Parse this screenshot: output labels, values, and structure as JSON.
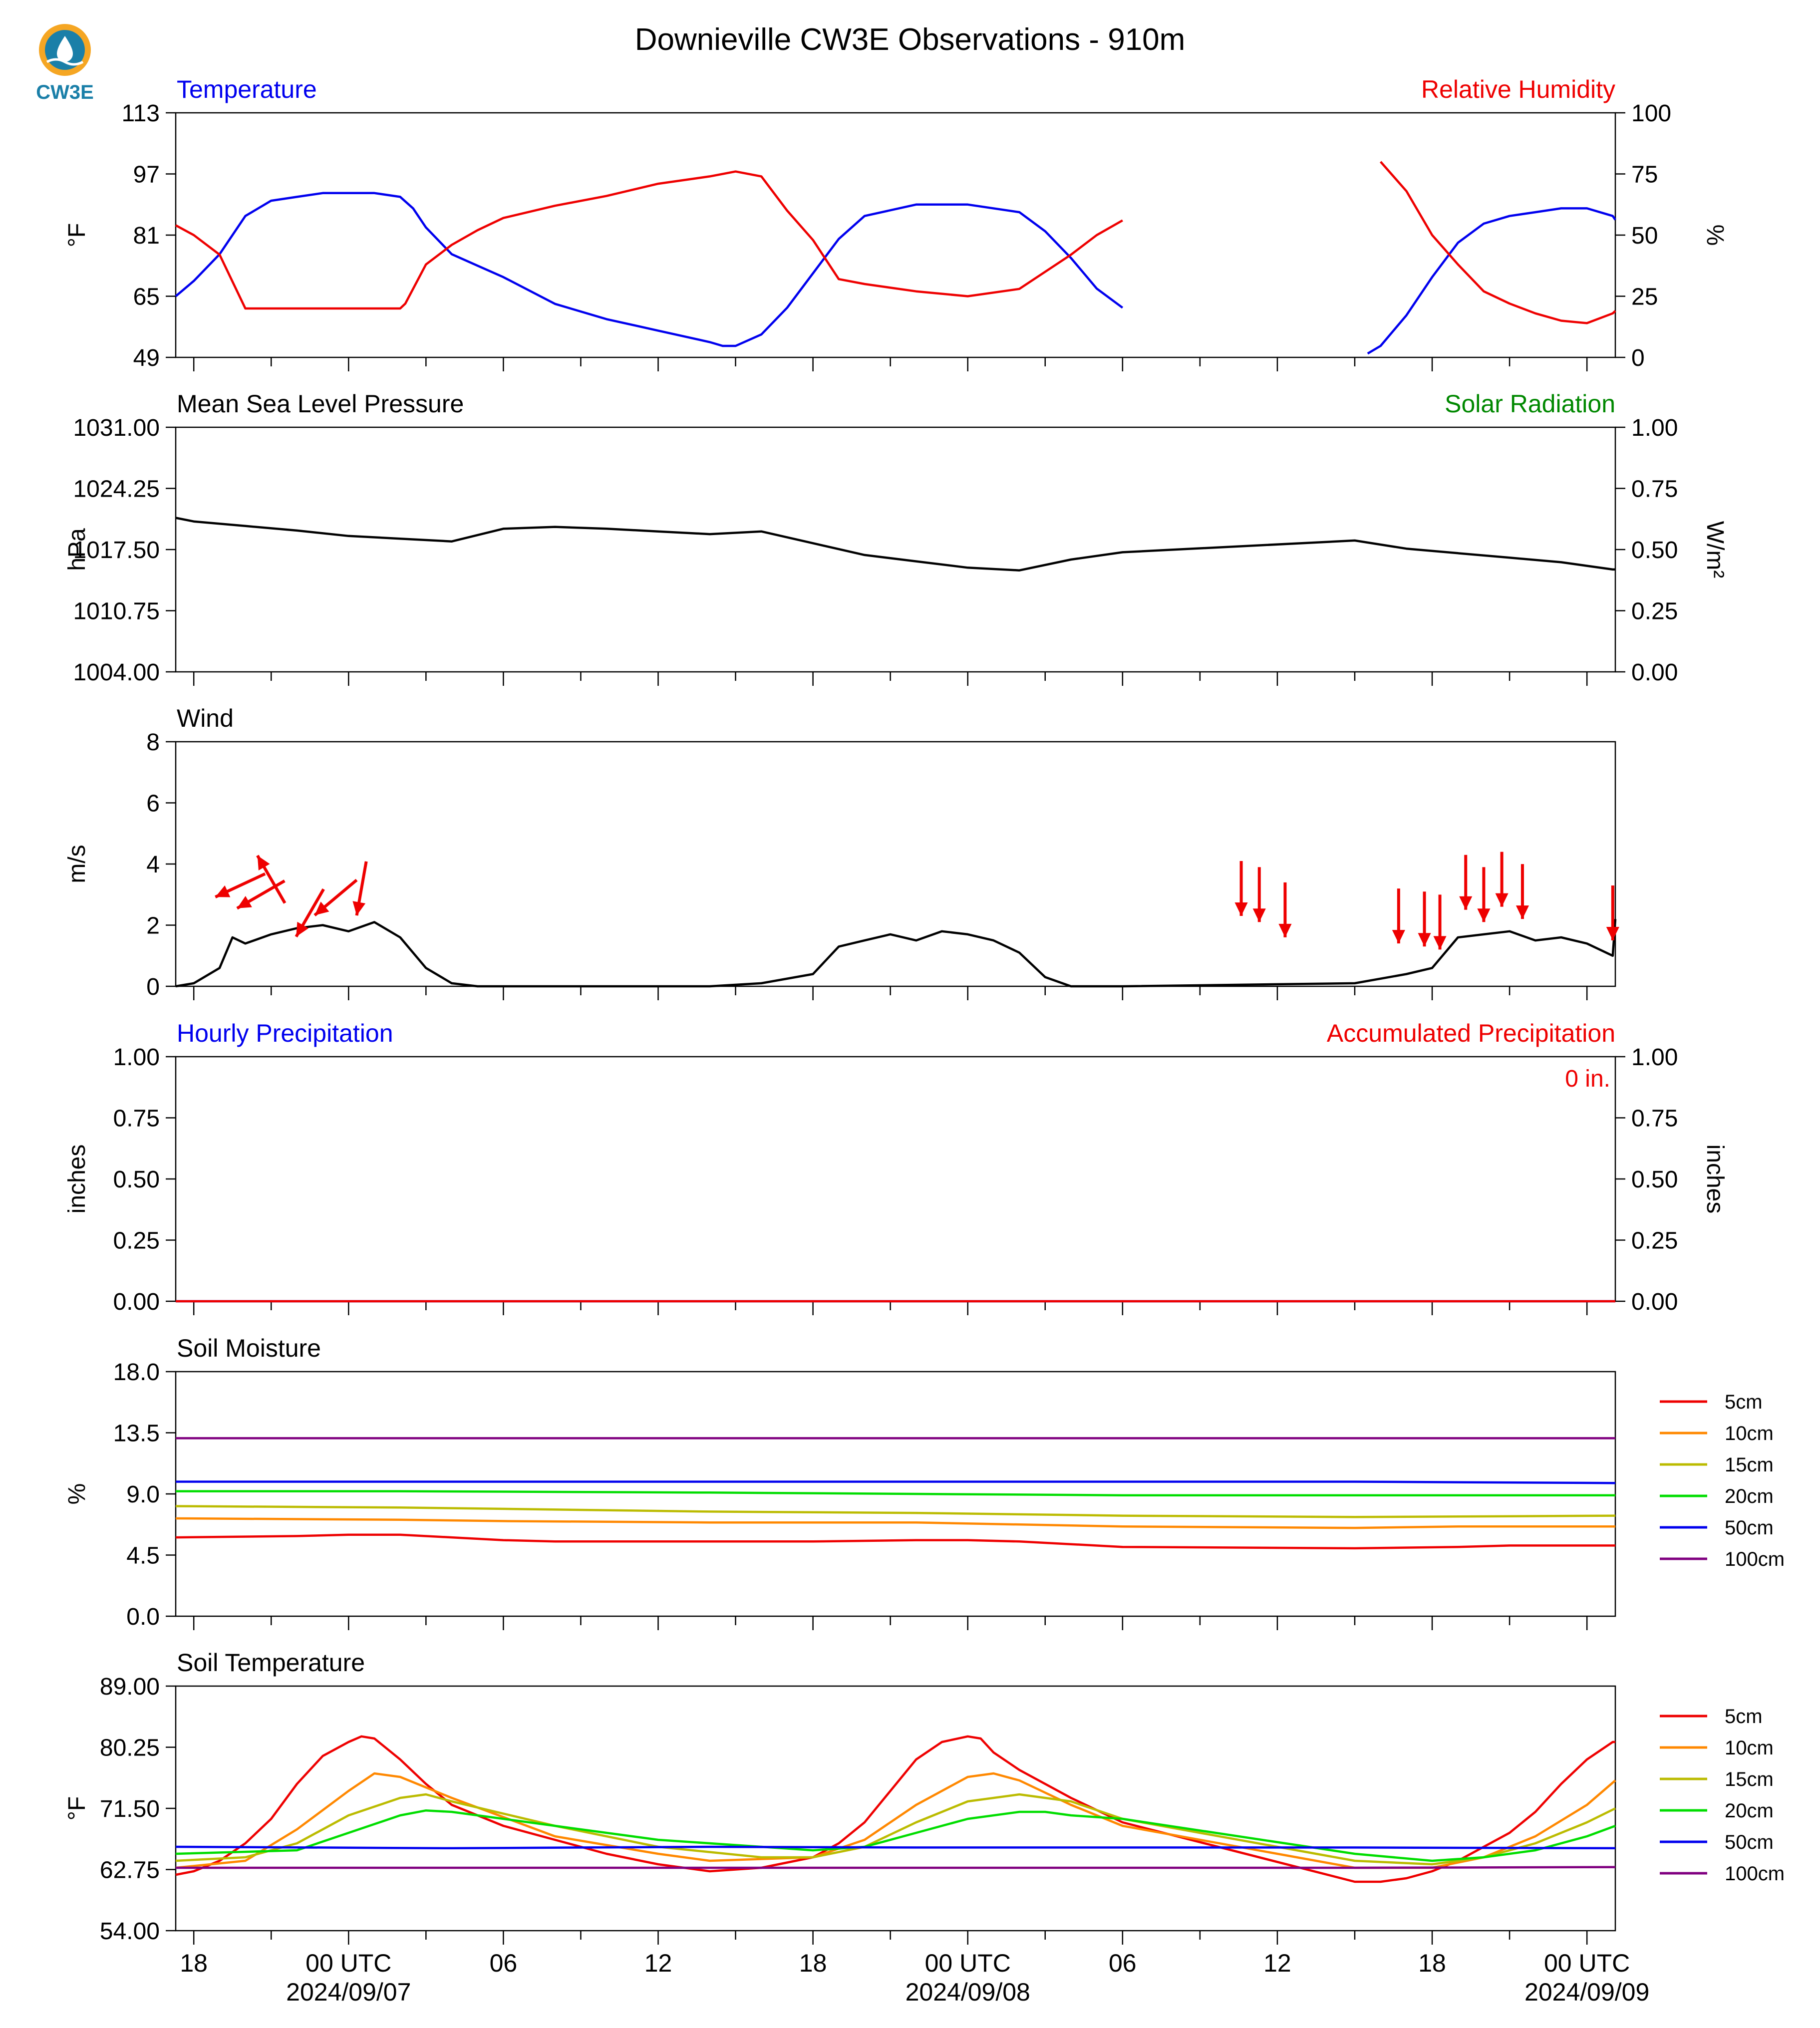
{
  "title": "Downieville CW3E Observations - 910m",
  "logo": {
    "text": "CW3E",
    "color": "#1a7fa8",
    "accent": "#f5a623"
  },
  "colors": {
    "blue": "#0000ee",
    "red": "#ee0000",
    "green": "#008800",
    "black": "#000000"
  },
  "x_axis": {
    "time_range_hours_from_18utc_0906": [
      -0.7,
      55.1
    ],
    "ticks": [
      {
        "hour": 0,
        "label": "18",
        "date": ""
      },
      {
        "hour": 6,
        "label": "00 UTC",
        "date": "2024/09/07"
      },
      {
        "hour": 12,
        "label": "06",
        "date": ""
      },
      {
        "hour": 18,
        "label": "12",
        "date": ""
      },
      {
        "hour": 24,
        "label": "18",
        "date": ""
      },
      {
        "hour": 30,
        "label": "00 UTC",
        "date": "2024/09/08"
      },
      {
        "hour": 36,
        "label": "06",
        "date": ""
      },
      {
        "hour": 42,
        "label": "12",
        "date": ""
      },
      {
        "hour": 48,
        "label": "18",
        "date": ""
      },
      {
        "hour": 54,
        "label": "00 UTC",
        "date": "2024/09/09"
      }
    ],
    "gap_hours": [
      36.0,
      45.0
    ]
  },
  "panels": [
    {
      "id": "temperature-rh",
      "left_title": "Temperature",
      "left_title_color": "#0000ee",
      "right_title": "Relative Humidity",
      "right_title_color": "#ee0000",
      "ylabel": "°F",
      "ylabel_right": "%",
      "yticks": [
        "49",
        "65",
        "81",
        "97",
        "113"
      ],
      "yticks_right": [
        "0",
        "25",
        "50",
        "75",
        "100"
      ]
    },
    {
      "id": "pressure-solar",
      "left_title": "Mean Sea Level Pressure",
      "left_title_color": "#000000",
      "right_title": "Solar Radiation",
      "right_title_color": "#008800",
      "ylabel": "hPa",
      "ylabel_right": "W/m²",
      "yticks": [
        "1004.00",
        "1010.75",
        "1017.50",
        "1024.25",
        "1031.00"
      ],
      "yticks_right": [
        "0.00",
        "0.25",
        "0.50",
        "0.75",
        "1.00"
      ]
    },
    {
      "id": "wind",
      "left_title": "Wind",
      "left_title_color": "#000000",
      "right_title": "",
      "right_title_color": "#000000",
      "ylabel": "m/s",
      "ylabel_right": "",
      "yticks": [
        "0",
        "2",
        "4",
        "6",
        "8"
      ],
      "yticks_right": []
    },
    {
      "id": "precipitation",
      "left_title": "Hourly Precipitation",
      "left_title_color": "#0000ee",
      "right_title": "Accumulated Precipitation",
      "right_title_color": "#ee0000",
      "ylabel": "inches",
      "ylabel_right": "inches",
      "yticks": [
        "0.00",
        "0.25",
        "0.50",
        "0.75",
        "1.00"
      ],
      "yticks_right": [
        "0.00",
        "0.25",
        "0.50",
        "0.75",
        "1.00"
      ],
      "annotation": "0 in."
    },
    {
      "id": "soil-moisture",
      "left_title": "Soil Moisture",
      "left_title_color": "#000000",
      "right_title": "",
      "right_title_color": "#000000",
      "ylabel": "%",
      "ylabel_right": "",
      "yticks": [
        "0.0",
        "4.5",
        "9.0",
        "13.5",
        "18.0"
      ],
      "yticks_right": []
    },
    {
      "id": "soil-temperature",
      "left_title": "Soil Temperature",
      "left_title_color": "#000000",
      "right_title": "",
      "right_title_color": "#000000",
      "ylabel": "°F",
      "ylabel_right": "",
      "yticks": [
        "54.00",
        "62.75",
        "71.50",
        "80.25",
        "89.00"
      ],
      "yticks_right": []
    }
  ],
  "legend_depths": [
    {
      "label": "5cm",
      "color": "#ee0000"
    },
    {
      "label": "10cm",
      "color": "#ff8800"
    },
    {
      "label": "15cm",
      "color": "#bbbb00"
    },
    {
      "label": "20cm",
      "color": "#00dd00"
    },
    {
      "label": "50cm",
      "color": "#0000ee"
    },
    {
      "label": "100cm",
      "color": "#800080"
    }
  ],
  "chart_data": [
    {
      "type": "line",
      "title": "Temperature",
      "ylabel": "°F",
      "ylim": [
        49,
        113
      ],
      "series": [
        {
          "name": "Temperature",
          "color": "#0000ee",
          "x": [
            -0.7,
            0,
            1,
            2,
            3,
            4,
            5,
            6,
            7,
            8,
            8.5,
            9,
            10,
            11,
            12,
            14,
            16,
            18,
            20,
            20.5,
            21,
            22,
            23,
            24,
            25,
            26,
            28,
            30,
            32,
            33,
            34,
            35,
            36,
            45,
            45.5,
            46,
            47,
            48,
            49,
            50,
            51,
            52,
            53,
            54,
            55,
            55.1
          ],
          "y": [
            65,
            69,
            76,
            86,
            90,
            91,
            92,
            92,
            92,
            91,
            88,
            83,
            76,
            73,
            70,
            63,
            59,
            56,
            53,
            52,
            52,
            55,
            62,
            71,
            80,
            86,
            89,
            89,
            87,
            82,
            75,
            67,
            62,
            null,
            50,
            52,
            60,
            70,
            79,
            84,
            86,
            87,
            88,
            88,
            86,
            85
          ]
        },
        {
          "name": "Relative Humidity",
          "color": "#ee0000",
          "axis": "right",
          "ylim_right": [
            0,
            100
          ],
          "x": [
            -0.7,
            0,
            1,
            2,
            3,
            4,
            5,
            6,
            7,
            8,
            8.2,
            9,
            10,
            11,
            12,
            14,
            16,
            18,
            20,
            21,
            22,
            23,
            24,
            25,
            26,
            28,
            30,
            32,
            33,
            34,
            35,
            36,
            45,
            46,
            47,
            48,
            49,
            50,
            51,
            52,
            53,
            54,
            55,
            55.1
          ],
          "y": [
            54,
            50,
            42,
            20,
            20,
            20,
            20,
            20,
            20,
            20,
            22,
            38,
            46,
            52,
            57,
            62,
            66,
            71,
            74,
            76,
            74,
            60,
            48,
            32,
            30,
            27,
            25,
            28,
            35,
            42,
            50,
            56,
            null,
            80,
            68,
            50,
            38,
            27,
            22,
            18,
            15,
            14,
            18,
            19
          ]
        }
      ]
    },
    {
      "type": "line",
      "title": "Mean Sea Level Pressure",
      "ylabel": "hPa",
      "ylim": [
        1004,
        1031
      ],
      "series": [
        {
          "name": "Mean Sea Level Pressure",
          "color": "#000000",
          "x": [
            -0.7,
            0,
            2,
            4,
            6,
            8,
            10,
            12,
            14,
            16,
            18,
            20,
            22,
            24,
            26,
            28,
            30,
            32,
            34,
            36,
            45,
            47,
            49,
            51,
            53,
            55,
            55.1
          ],
          "y": [
            1021.0,
            1020.6,
            1020.1,
            1019.6,
            1019.0,
            1018.7,
            1018.4,
            1019.8,
            1020.0,
            1019.8,
            1019.5,
            1019.2,
            1019.5,
            1018.2,
            1016.9,
            1016.2,
            1015.5,
            1015.2,
            1016.4,
            1017.2,
            1018.5,
            1017.6,
            1017.1,
            1016.6,
            1016.1,
            1015.3,
            1015.3
          ]
        }
      ]
    },
    {
      "type": "line",
      "title": "Wind",
      "ylabel": "m/s",
      "ylim": [
        0,
        8
      ],
      "series": [
        {
          "name": "Wind",
          "color": "#000000",
          "x": [
            -0.7,
            0,
            1,
            1.5,
            2,
            3,
            4,
            5,
            6,
            7,
            8,
            9,
            10,
            11,
            12,
            20,
            22,
            24,
            25,
            26,
            27,
            28,
            29,
            30,
            31,
            32,
            33,
            34,
            36,
            45,
            47,
            48,
            49,
            50,
            51,
            52,
            53,
            54,
            55,
            55.1
          ],
          "y": [
            0,
            0.1,
            0.6,
            1.6,
            1.4,
            1.7,
            1.9,
            2.0,
            1.8,
            2.1,
            1.6,
            0.6,
            0.1,
            0,
            0,
            0,
            0.1,
            0.4,
            1.3,
            1.5,
            1.7,
            1.5,
            1.8,
            1.7,
            1.5,
            1.1,
            0.3,
            0,
            0,
            0.1,
            0.4,
            0.6,
            1.6,
            1.7,
            1.8,
            1.5,
            1.6,
            1.4,
            1.0,
            2.2
          ]
        },
        {
          "name": "Wind direction",
          "color": "#ee0000",
          "kind": "arrows",
          "x": [
            1.8,
            2.6,
            3.0,
            4.5,
            5.5,
            6.5,
            40.6,
            41.3,
            42.3,
            46.7,
            47.7,
            48.3,
            49.3,
            50.0,
            50.7,
            51.5,
            55.0
          ],
          "speed": [
            3.3,
            3.0,
            3.5,
            2.4,
            2.9,
            3.2,
            3.2,
            3.0,
            2.5,
            2.3,
            2.2,
            2.1,
            3.4,
            3.0,
            3.5,
            3.1,
            2.4
          ],
          "dir_deg": [
            295,
            300,
            210,
            330,
            310,
            350,
            0,
            0,
            0,
            0,
            0,
            0,
            0,
            0,
            0,
            0,
            0
          ]
        }
      ]
    },
    {
      "type": "line",
      "title": "Hourly Precipitation",
      "ylabel": "inches",
      "ylim": [
        0,
        1
      ],
      "series": [
        {
          "name": "Hourly Precipitation",
          "color": "#0000ee",
          "x": [
            -0.7,
            55.1
          ],
          "y": [
            0,
            0
          ]
        },
        {
          "name": "Accumulated Precipitation",
          "color": "#ee0000",
          "x": [
            -0.7,
            55.1
          ],
          "y": [
            0,
            0
          ]
        }
      ]
    },
    {
      "type": "line",
      "title": "Soil Moisture",
      "ylabel": "%",
      "ylim": [
        0,
        18
      ],
      "series": [
        {
          "name": "5cm",
          "color": "#ee0000",
          "x": [
            -0.7,
            4,
            6,
            8,
            10,
            12,
            14,
            20,
            24,
            28,
            30,
            32,
            34,
            36,
            45,
            49,
            51,
            55.1
          ],
          "y": [
            5.8,
            5.9,
            6.0,
            6.0,
            5.8,
            5.6,
            5.5,
            5.5,
            5.5,
            5.6,
            5.6,
            5.5,
            5.3,
            5.1,
            5.0,
            5.1,
            5.2,
            5.2
          ]
        },
        {
          "name": "10cm",
          "color": "#ff8800",
          "x": [
            -0.7,
            8,
            12,
            20,
            28,
            36,
            45,
            49,
            55.1
          ],
          "y": [
            7.2,
            7.1,
            7.0,
            6.9,
            6.9,
            6.6,
            6.5,
            6.6,
            6.6
          ]
        },
        {
          "name": "15cm",
          "color": "#bbbb00",
          "x": [
            -0.7,
            8,
            12,
            20,
            28,
            36,
            45,
            55.1
          ],
          "y": [
            8.1,
            8.0,
            7.9,
            7.7,
            7.6,
            7.4,
            7.3,
            7.4
          ]
        },
        {
          "name": "20cm",
          "color": "#00dd00",
          "x": [
            -0.7,
            8,
            20,
            28,
            36,
            45,
            55.1
          ],
          "y": [
            9.2,
            9.2,
            9.1,
            9.0,
            8.9,
            8.9,
            8.9
          ]
        },
        {
          "name": "50cm",
          "color": "#0000ee",
          "x": [
            -0.7,
            36,
            45,
            55.1
          ],
          "y": [
            9.9,
            9.9,
            9.9,
            9.8
          ]
        },
        {
          "name": "100cm",
          "color": "#800080",
          "x": [
            -0.7,
            36,
            45,
            55.1
          ],
          "y": [
            13.1,
            13.1,
            13.1,
            13.1
          ]
        }
      ]
    },
    {
      "type": "line",
      "title": "Soil Temperature",
      "ylabel": "°F",
      "ylim": [
        54,
        89
      ],
      "series": [
        {
          "name": "5cm",
          "color": "#ee0000",
          "x": [
            -0.7,
            0,
            1,
            2,
            3,
            4,
            5,
            6,
            6.5,
            7,
            8,
            9,
            10,
            12,
            14,
            16,
            18,
            20,
            22,
            24,
            25,
            26,
            27,
            28,
            29,
            30,
            30.5,
            31,
            32,
            34,
            36,
            45,
            46,
            47,
            48,
            49,
            50,
            51,
            52,
            53,
            54,
            55,
            55.1
          ],
          "y": [
            62.0,
            62.5,
            64.0,
            66.5,
            70.0,
            75.0,
            79.0,
            81.0,
            81.8,
            81.5,
            78.5,
            75.0,
            72.0,
            69.0,
            67.0,
            65.0,
            63.5,
            62.5,
            63.0,
            64.5,
            66.5,
            69.5,
            74.0,
            78.5,
            81.0,
            81.8,
            81.5,
            79.5,
            77.0,
            73.0,
            69.5,
            61.0,
            61.0,
            61.5,
            62.5,
            64.0,
            66.0,
            68.0,
            71.0,
            75.0,
            78.5,
            81.0,
            81.0
          ]
        },
        {
          "name": "10cm",
          "color": "#ff8800",
          "x": [
            -0.7,
            2,
            4,
            6,
            7,
            8,
            10,
            14,
            18,
            20,
            24,
            26,
            28,
            30,
            31,
            32,
            34,
            36,
            45,
            48,
            50,
            52,
            54,
            55.1
          ],
          "y": [
            63.0,
            64.0,
            68.5,
            74.0,
            76.5,
            76.0,
            73.0,
            67.5,
            65.0,
            64.0,
            64.5,
            67.0,
            72.0,
            76.0,
            76.5,
            75.5,
            72.0,
            69.0,
            63.0,
            63.0,
            64.5,
            67.5,
            72.0,
            75.5
          ]
        },
        {
          "name": "15cm",
          "color": "#bbbb00",
          "x": [
            -0.7,
            2,
            4,
            6,
            8,
            9,
            10,
            14,
            18,
            22,
            24,
            26,
            28,
            30,
            32,
            34,
            36,
            45,
            48,
            50,
            52,
            54,
            55.1
          ],
          "y": [
            64.0,
            64.5,
            66.5,
            70.5,
            73.0,
            73.5,
            72.5,
            69.0,
            66.0,
            64.5,
            64.5,
            66.0,
            69.5,
            72.5,
            73.5,
            72.5,
            70.0,
            64.0,
            63.5,
            64.5,
            66.5,
            69.5,
            71.5
          ]
        },
        {
          "name": "20cm",
          "color": "#00dd00",
          "x": [
            -0.7,
            4,
            6,
            8,
            9,
            10,
            14,
            18,
            24,
            26,
            28,
            30,
            32,
            33,
            34,
            36,
            45,
            48,
            50,
            52,
            54,
            55.1
          ],
          "y": [
            65.0,
            65.5,
            68.0,
            70.5,
            71.2,
            71.0,
            69.0,
            67.0,
            65.5,
            66.0,
            68.0,
            70.0,
            71.0,
            71.0,
            70.5,
            70.0,
            65.0,
            64.0,
            64.5,
            65.5,
            67.5,
            69.0
          ]
        },
        {
          "name": "50cm",
          "color": "#0000ee",
          "x": [
            -0.7,
            10,
            20,
            28,
            36,
            45,
            55.1
          ],
          "y": [
            66.0,
            65.8,
            66.0,
            65.9,
            65.9,
            65.9,
            65.8
          ]
        },
        {
          "name": "100cm",
          "color": "#800080",
          "x": [
            -0.7,
            20,
            36,
            45,
            55.1
          ],
          "y": [
            63.0,
            63.0,
            63.0,
            63.0,
            63.1
          ]
        }
      ]
    }
  ]
}
